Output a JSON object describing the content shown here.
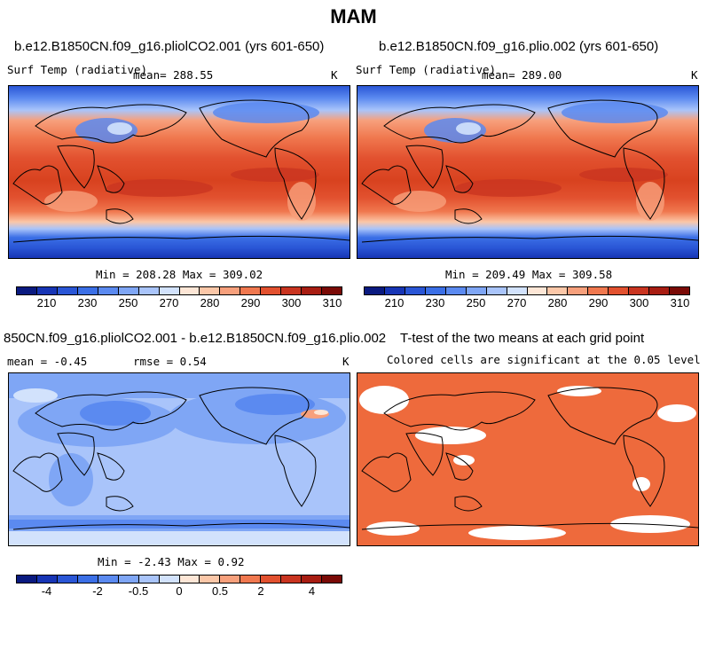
{
  "title": "MAM",
  "panels": {
    "p1": {
      "title": "b.e12.B1850CN.f09_g16.pliolCO2.001 (yrs 601-650)",
      "left": "Surf Temp (radiative)",
      "center": "mean= 288.55",
      "units": "K",
      "minmax": "Min = 208.28 Max = 309.02"
    },
    "p2": {
      "title": "b.e12.B1850CN.f09_g16.plio.002 (yrs 601-650)",
      "left": "Surf Temp (radiative)",
      "center": "mean= 289.00",
      "units": "K",
      "minmax": "Min = 209.49 Max = 309.58"
    },
    "p3": {
      "title": "850CN.f09_g16.pliolCO2.001 - b.e12.B1850CN.f09_g16.plio.002",
      "left": "mean =  -0.45",
      "center": "rmse =    0.54",
      "units": "K",
      "minmax": "Min =  -2.43 Max =   0.92"
    },
    "p4": {
      "title": "T-test of the two means at each grid point",
      "subtitle": "Colored cells are significant at the 0.05 level",
      "sig_color": "#ee6a3c"
    }
  },
  "colorbar_abs": {
    "colors": [
      "#0a1a80",
      "#1735b5",
      "#2a56d6",
      "#3b6fe6",
      "#5b8af0",
      "#7fa6f5",
      "#a9c4fa",
      "#d2e2fc",
      "#fde6d6",
      "#fbc7a8",
      "#f7a07c",
      "#f0784f",
      "#e2512f",
      "#c93420",
      "#a81d12",
      "#7a0a06"
    ],
    "labels": [
      "210",
      "230",
      "250",
      "270",
      "280",
      "290",
      "300",
      "310"
    ]
  },
  "colorbar_diff": {
    "colors": [
      "#0a1a80",
      "#1735b5",
      "#2a56d6",
      "#3b6fe6",
      "#5b8af0",
      "#7fa6f5",
      "#a9c4fa",
      "#d2e2fc",
      "#fde6d6",
      "#fbc7a8",
      "#f7a07c",
      "#f0784f",
      "#e2512f",
      "#c93420",
      "#a81d12",
      "#7a0a06"
    ],
    "labels": [
      "-4",
      "-2",
      "-0.5",
      "0",
      "0.5",
      "2",
      "4"
    ]
  }
}
